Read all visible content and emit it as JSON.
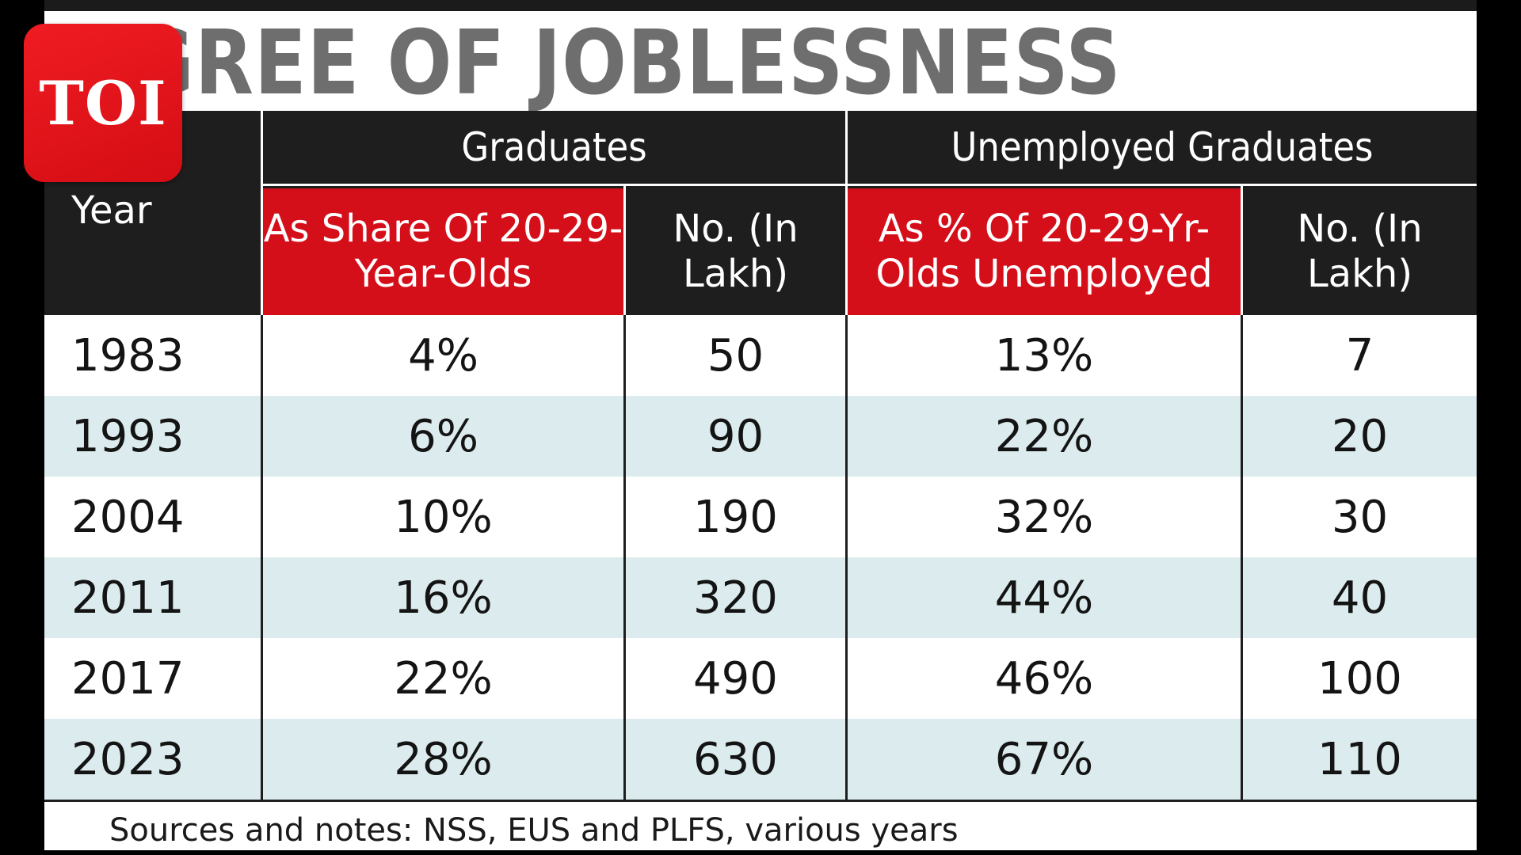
{
  "logo": {
    "text": "TOI",
    "bg_color": "#e31219"
  },
  "title": "GREE OF JOBLESSNESS",
  "colors": {
    "header_dark": "#1e1e1e",
    "header_red": "#d40f1a",
    "row_shade": "#dcebed",
    "title_gray": "#6e6e6e"
  },
  "source_note": "Sources and notes: NSS, EUS and PLFS, various years",
  "chart_data": {
    "type": "table",
    "title": "GREE OF JOBLESSNESS",
    "column_groups": [
      "Graduates",
      "Unemployed Graduates"
    ],
    "year_header": "Year",
    "columns": [
      "As Share Of 20-29-Year-Olds",
      "No. (In Lakh)",
      "As % Of 20-29-Yr-Olds Unemployed",
      "No. (In Lakh)"
    ],
    "rows": [
      {
        "year": "1983",
        "values": [
          "4%",
          "50",
          "13%",
          "7"
        ]
      },
      {
        "year": "1993",
        "values": [
          "6%",
          "90",
          "22%",
          "20"
        ]
      },
      {
        "year": "2004",
        "values": [
          "10%",
          "190",
          "32%",
          "30"
        ]
      },
      {
        "year": "2011",
        "values": [
          "16%",
          "320",
          "44%",
          "40"
        ]
      },
      {
        "year": "2017",
        "values": [
          "22%",
          "490",
          "46%",
          "100"
        ]
      },
      {
        "year": "2023",
        "values": [
          "28%",
          "630",
          "67%",
          "110"
        ]
      }
    ],
    "source": "Sources and notes: NSS, EUS and PLFS, various years"
  }
}
